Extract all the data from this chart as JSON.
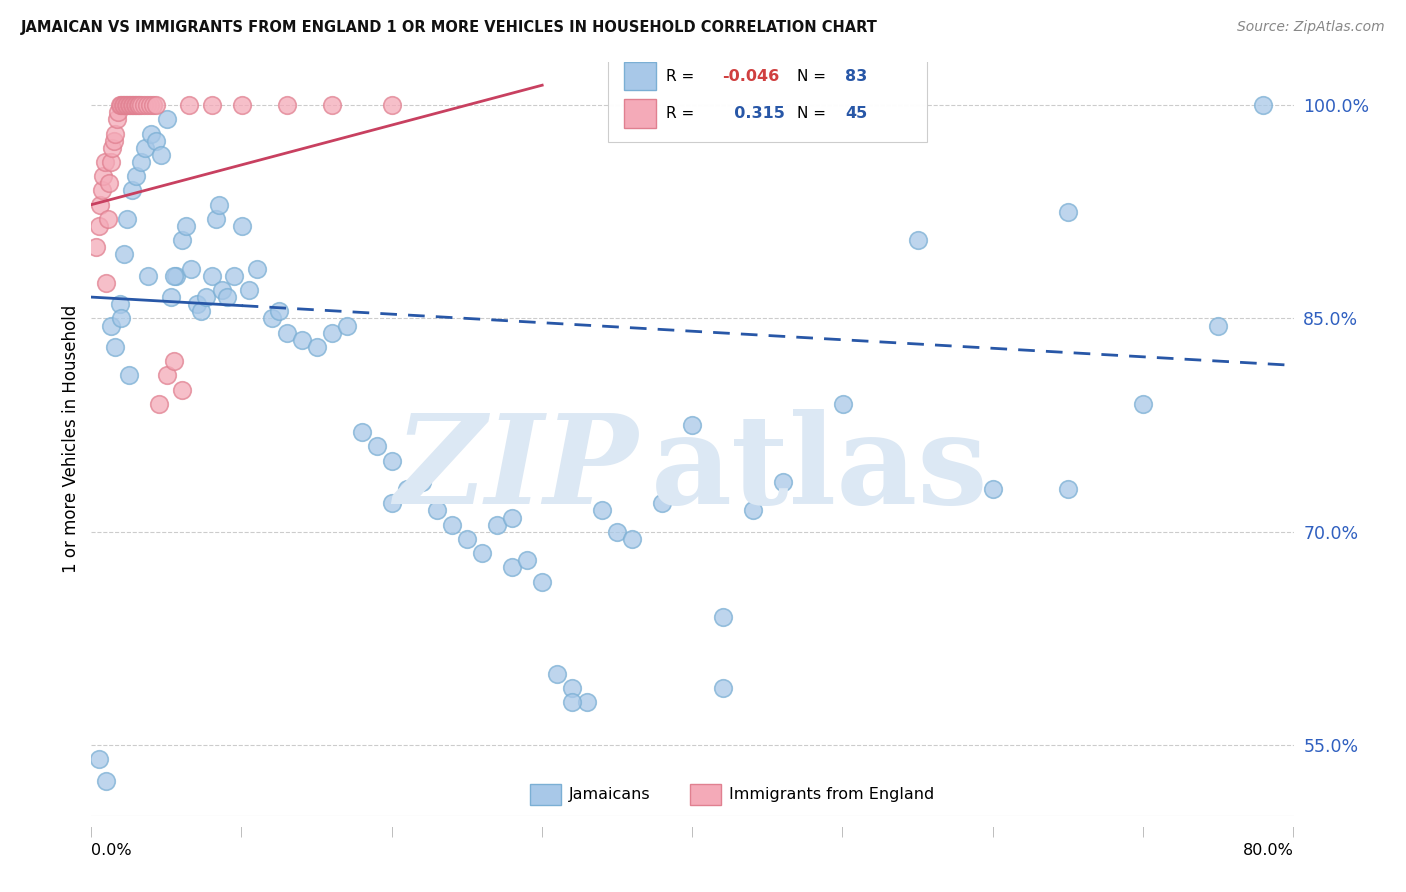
{
  "title": "JAMAICAN VS IMMIGRANTS FROM ENGLAND 1 OR MORE VEHICLES IN HOUSEHOLD CORRELATION CHART",
  "source": "Source: ZipAtlas.com",
  "ylabel": "1 or more Vehicles in Household",
  "blue_R": -0.046,
  "blue_N": 83,
  "pink_R": 0.315,
  "pink_N": 45,
  "blue_dot_color": "#a8c8e8",
  "blue_dot_edge": "#7bafd4",
  "pink_dot_color": "#f4aab8",
  "pink_dot_edge": "#e08090",
  "blue_line_color": "#2857a7",
  "pink_line_color": "#c84060",
  "grid_color": "#cccccc",
  "right_tick_color": "#3060c0",
  "source_color": "#888888",
  "legend_border_color": "#cccccc",
  "legend_R_color": "#000000",
  "legend_val_neg_color": "#d04040",
  "legend_val_pos_color": "#2857a7",
  "watermark_color": "#dce8f4",
  "x_min": 0,
  "x_max": 80,
  "y_min": 50,
  "y_max": 103,
  "y_ticks": [
    55.0,
    70.0,
    85.0,
    100.0
  ],
  "blue_intercept": 86.5,
  "blue_slope": -0.06,
  "blue_solid_end": 10,
  "pink_intercept": 93.0,
  "pink_slope": 0.28,
  "pink_line_end": 30,
  "blue_x": [
    0.5,
    1.0,
    1.3,
    1.6,
    1.9,
    2.2,
    2.4,
    2.7,
    3.0,
    3.3,
    3.6,
    4.0,
    4.3,
    4.6,
    5.0,
    5.3,
    5.6,
    6.0,
    6.3,
    6.6,
    7.0,
    7.3,
    7.6,
    8.0,
    8.3,
    8.7,
    9.0,
    9.5,
    10.0,
    11.0,
    12.0,
    13.0,
    14.0,
    15.0,
    16.0,
    17.0,
    18.0,
    19.0,
    20.0,
    21.0,
    22.0,
    23.0,
    24.0,
    25.0,
    26.0,
    27.0,
    28.0,
    29.0,
    30.0,
    31.0,
    32.0,
    33.0,
    34.0,
    35.0,
    36.0,
    38.0,
    40.0,
    42.0,
    44.0,
    46.0,
    50.0,
    55.0,
    60.0,
    65.0,
    70.0,
    75.0,
    78.0,
    2.0,
    2.5,
    3.8,
    5.5,
    8.5,
    10.5,
    12.5,
    20.0,
    28.0,
    32.0,
    42.0,
    65.0
  ],
  "blue_y": [
    54.0,
    52.5,
    84.5,
    83.0,
    86.0,
    89.5,
    92.0,
    94.0,
    95.0,
    96.0,
    97.0,
    98.0,
    97.5,
    96.5,
    99.0,
    86.5,
    88.0,
    90.5,
    91.5,
    88.5,
    86.0,
    85.5,
    86.5,
    88.0,
    92.0,
    87.0,
    86.5,
    88.0,
    91.5,
    88.5,
    85.0,
    84.0,
    83.5,
    83.0,
    84.0,
    84.5,
    77.0,
    76.0,
    75.0,
    73.0,
    73.5,
    71.5,
    70.5,
    69.5,
    68.5,
    70.5,
    67.5,
    68.0,
    66.5,
    60.0,
    59.0,
    58.0,
    71.5,
    70.0,
    69.5,
    72.0,
    77.5,
    64.0,
    71.5,
    73.5,
    79.0,
    90.5,
    73.0,
    73.0,
    79.0,
    84.5,
    100.0,
    85.0,
    81.0,
    88.0,
    88.0,
    93.0,
    87.0,
    85.5,
    72.0,
    71.0,
    58.0,
    59.0,
    92.5
  ],
  "pink_x": [
    0.3,
    0.5,
    0.6,
    0.7,
    0.8,
    0.9,
    1.0,
    1.1,
    1.2,
    1.3,
    1.4,
    1.5,
    1.6,
    1.7,
    1.8,
    1.9,
    2.0,
    2.1,
    2.2,
    2.3,
    2.4,
    2.5,
    2.6,
    2.7,
    2.8,
    2.9,
    3.0,
    3.1,
    3.2,
    3.3,
    3.5,
    3.7,
    3.9,
    4.1,
    4.3,
    4.5,
    5.0,
    5.5,
    6.0,
    6.5,
    8.0,
    10.0,
    13.0,
    16.0,
    20.0
  ],
  "pink_y": [
    90.0,
    91.5,
    93.0,
    94.0,
    95.0,
    96.0,
    87.5,
    92.0,
    94.5,
    96.0,
    97.0,
    97.5,
    98.0,
    99.0,
    99.5,
    100.0,
    100.0,
    100.0,
    100.0,
    100.0,
    100.0,
    100.0,
    100.0,
    100.0,
    100.0,
    100.0,
    100.0,
    100.0,
    100.0,
    100.0,
    100.0,
    100.0,
    100.0,
    100.0,
    100.0,
    79.0,
    81.0,
    82.0,
    80.0,
    100.0,
    100.0,
    100.0,
    100.0,
    100.0,
    100.0
  ]
}
